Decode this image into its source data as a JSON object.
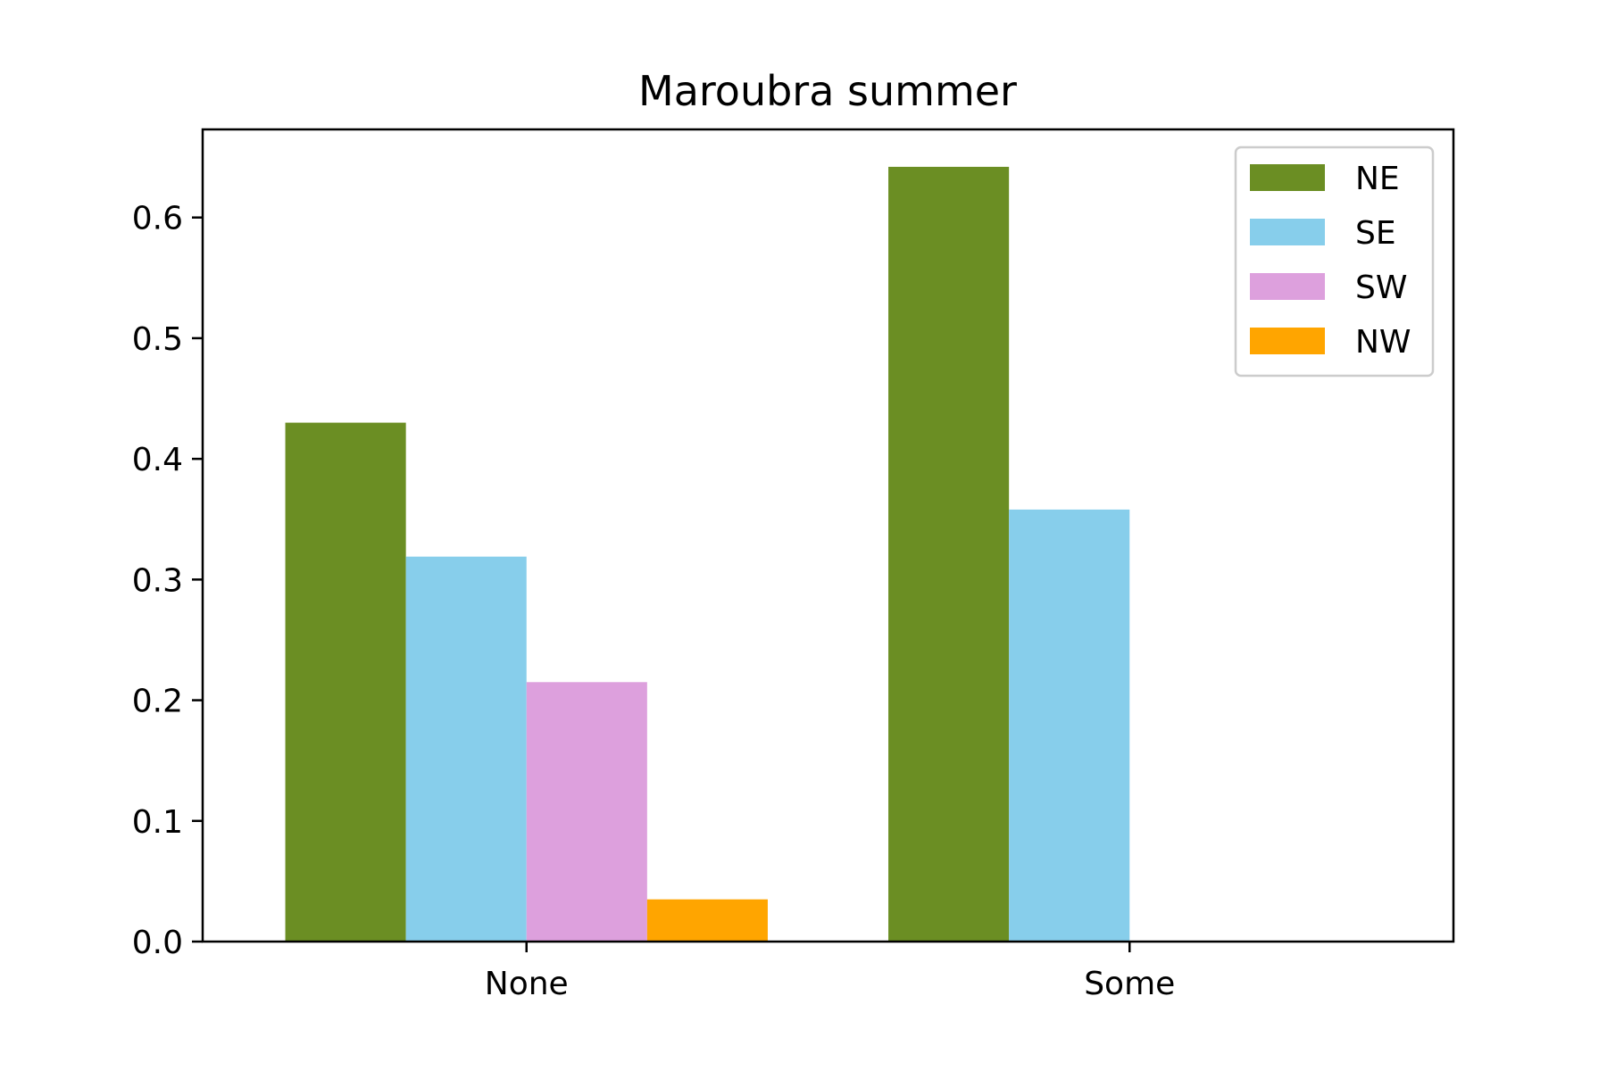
{
  "chart_data": {
    "type": "bar",
    "title": "Maroubra summer",
    "xlabel": "",
    "ylabel": "",
    "categories": [
      "None",
      "Some"
    ],
    "series": [
      {
        "name": "NE",
        "color": "#6b8e23",
        "values": [
          0.43,
          0.642
        ]
      },
      {
        "name": "SE",
        "color": "#87ceeb",
        "values": [
          0.319,
          0.358
        ]
      },
      {
        "name": "SW",
        "color": "#dda0dd",
        "values": [
          0.215,
          0
        ]
      },
      {
        "name": "NW",
        "color": "#ffa500",
        "values": [
          0.035,
          0
        ]
      }
    ],
    "ylim": [
      0,
      0.673
    ],
    "yticks": [
      "0.0",
      "0.1",
      "0.2",
      "0.3",
      "0.4",
      "0.5",
      "0.6"
    ],
    "grid": false,
    "legend_position": "top-right"
  }
}
